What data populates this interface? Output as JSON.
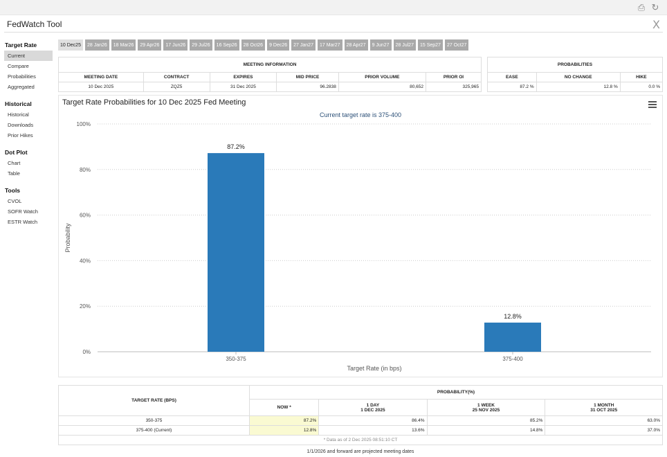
{
  "app": {
    "title": "FedWatch Tool",
    "close_glyph": "X"
  },
  "top_icons": [
    "print-icon",
    "refresh-icon"
  ],
  "sidebar": [
    {
      "title": "Target Rate",
      "items": [
        "Current",
        "Compare",
        "Probabilities",
        "Aggregated"
      ],
      "active": "Current"
    },
    {
      "title": "Historical",
      "items": [
        "Historical",
        "Downloads",
        "Prior Hikes"
      ]
    },
    {
      "title": "Dot Plot",
      "items": [
        "Chart",
        "Table"
      ]
    },
    {
      "title": "Tools",
      "items": [
        "CVOL",
        "SOFR Watch",
        "ESTR Watch"
      ]
    }
  ],
  "tabs": [
    "10 Dec25",
    "28 Jan26",
    "18 Mar26",
    "29 Apr26",
    "17 Jun26",
    "29 Jul26",
    "16 Sep26",
    "28 Oct26",
    "9 Dec26",
    "27 Jan27",
    "17 Mar27",
    "28 Apr27",
    "9 Jun27",
    "28 Jul27",
    "15 Sep27",
    "27 Oct27"
  ],
  "active_tab": "10 Dec25",
  "meeting_info": {
    "header": "MEETING INFORMATION",
    "columns": [
      "MEETING DATE",
      "CONTRACT",
      "EXPIRES",
      "MID PRICE",
      "PRIOR VOLUME",
      "PRIOR OI"
    ],
    "row": [
      "10 Dec 2025",
      "ZQZ5",
      "31 Dec 2025",
      "96.2838",
      "80,652",
      "325,965"
    ]
  },
  "probabilities": {
    "header": "PROBABILITIES",
    "columns": [
      "EASE",
      "NO CHANGE",
      "HIKE"
    ],
    "row": [
      "87.2 %",
      "12.8 %",
      "0.0 %"
    ]
  },
  "chart": {
    "title": "Target Rate Probabilities for 10 Dec 2025 Fed Meeting",
    "subtitle": "Current target rate is 375-400",
    "bar_color": "#2a7ab9"
  },
  "chart_data": {
    "type": "bar",
    "title": "Target Rate Probabilities for 10 Dec 2025 Fed Meeting",
    "subtitle": "Current target rate is 375-400",
    "categories": [
      "350-375",
      "375-400"
    ],
    "values": [
      87.2,
      12.8
    ],
    "data_labels": [
      "87.2%",
      "12.8%"
    ],
    "xlabel": "Target Rate (in bps)",
    "ylabel": "Probability",
    "ylim": [
      0,
      100
    ],
    "yticks": [
      "0%",
      "20%",
      "40%",
      "60%",
      "80%",
      "100%"
    ],
    "grid": "horizontal-dotted"
  },
  "prob_table": {
    "col_header": "TARGET RATE (BPS)",
    "group_header": "PROBABILITY(%)",
    "periods": [
      {
        "line1": "NOW *",
        "line2": ""
      },
      {
        "line1": "1 DAY",
        "line2": "1 DEC 2025"
      },
      {
        "line1": "1 WEEK",
        "line2": "25 NOV 2025"
      },
      {
        "line1": "1 MONTH",
        "line2": "31 OCT 2025"
      }
    ],
    "rows": [
      {
        "rate": "350-375",
        "values": [
          "87.2%",
          "86.4%",
          "85.2%",
          "63.0%"
        ]
      },
      {
        "rate": "375-400 (Current)",
        "values": [
          "12.8%",
          "13.6%",
          "14.8%",
          "37.0%"
        ]
      }
    ],
    "footnote": "* Data as of 2 Dec 2025 08:51:10 CT"
  },
  "projection_note": "1/1/2026 and forward are projected meeting dates"
}
